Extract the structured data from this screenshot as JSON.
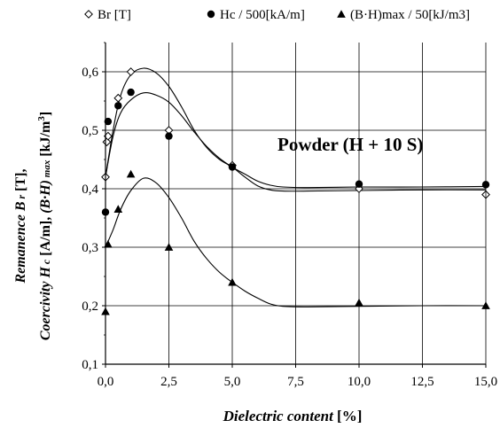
{
  "chart_data": {
    "type": "scatter",
    "xlabel_parts": [
      "Dielectric content",
      "  [%]"
    ],
    "ylabel_line1": [
      "Remanence ",
      "B",
      " r",
      "  [T],"
    ],
    "ylabel_line2": [
      "Coercivity ",
      "H",
      " c",
      "  [A/m], ",
      "(B·H)",
      " max",
      "  [kJ/m",
      "3",
      "]"
    ],
    "annotation": "Powder  (H + 10 S)",
    "xlim": [
      0,
      15
    ],
    "ylim": [
      0.1,
      0.65
    ],
    "x_ticks": [
      0,
      2.5,
      5,
      7.5,
      10,
      12.5,
      15
    ],
    "x_tick_labels": [
      "0,0",
      "2,5",
      "5,0",
      "7,5",
      "10,0",
      "12,5",
      "15,0"
    ],
    "y_ticks": [
      0.1,
      0.2,
      0.3,
      0.4,
      0.5,
      0.6
    ],
    "y_tick_labels": [
      "0,1",
      "0,2",
      "0,3",
      "0,4",
      "0,5",
      "0,6"
    ],
    "grid": true,
    "legend_position": "top",
    "series": [
      {
        "name": "Br [T]",
        "marker": "diamond-open",
        "points": [
          [
            0,
            0.42
          ],
          [
            0.05,
            0.48
          ],
          [
            0.1,
            0.49
          ],
          [
            0.5,
            0.555
          ],
          [
            1.0,
            0.6
          ],
          [
            2.5,
            0.5
          ],
          [
            5.0,
            0.44
          ],
          [
            10.0,
            0.4
          ],
          [
            15.0,
            0.39
          ]
        ],
        "curve": [
          [
            0,
            0.42
          ],
          [
            0.3,
            0.5
          ],
          [
            0.6,
            0.56
          ],
          [
            1.0,
            0.595
          ],
          [
            1.5,
            0.606
          ],
          [
            2.0,
            0.598
          ],
          [
            2.5,
            0.575
          ],
          [
            3.0,
            0.54
          ],
          [
            3.5,
            0.5
          ],
          [
            4.0,
            0.47
          ],
          [
            4.5,
            0.45
          ],
          [
            5.0,
            0.437
          ],
          [
            5.5,
            0.42
          ],
          [
            6.0,
            0.405
          ],
          [
            6.5,
            0.398
          ],
          [
            7.0,
            0.396
          ],
          [
            8.0,
            0.396
          ],
          [
            10.0,
            0.397
          ],
          [
            12.5,
            0.398
          ],
          [
            15.0,
            0.398
          ]
        ]
      },
      {
        "name": "Hc / 500[kA/m]",
        "marker": "circle-filled",
        "points": [
          [
            0,
            0.36
          ],
          [
            0.1,
            0.515
          ],
          [
            0.5,
            0.542
          ],
          [
            1.0,
            0.565
          ],
          [
            2.5,
            0.49
          ],
          [
            5.0,
            0.437
          ],
          [
            10.0,
            0.408
          ],
          [
            15.0,
            0.407
          ]
        ],
        "curve": [
          [
            0,
            0.42
          ],
          [
            0.3,
            0.49
          ],
          [
            0.6,
            0.53
          ],
          [
            1.0,
            0.552
          ],
          [
            1.5,
            0.564
          ],
          [
            2.0,
            0.56
          ],
          [
            2.5,
            0.548
          ],
          [
            3.0,
            0.525
          ],
          [
            3.5,
            0.497
          ],
          [
            4.0,
            0.472
          ],
          [
            4.5,
            0.452
          ],
          [
            5.0,
            0.437
          ],
          [
            5.5,
            0.425
          ],
          [
            6.0,
            0.413
          ],
          [
            6.5,
            0.406
          ],
          [
            7.0,
            0.403
          ],
          [
            8.0,
            0.402
          ],
          [
            10.0,
            0.403
          ],
          [
            12.5,
            0.403
          ],
          [
            15.0,
            0.404
          ]
        ]
      },
      {
        "name": "(B·H)max / 50[kJ/m3]",
        "marker": "triangle-filled",
        "points": [
          [
            0,
            0.19
          ],
          [
            0.1,
            0.305
          ],
          [
            0.5,
            0.365
          ],
          [
            1.0,
            0.425
          ],
          [
            2.5,
            0.3
          ],
          [
            5.0,
            0.24
          ],
          [
            10.0,
            0.205
          ],
          [
            15.0,
            0.2
          ]
        ],
        "curve": [
          [
            0,
            0.3
          ],
          [
            0.3,
            0.33
          ],
          [
            0.6,
            0.365
          ],
          [
            1.0,
            0.397
          ],
          [
            1.5,
            0.418
          ],
          [
            2.0,
            0.41
          ],
          [
            2.5,
            0.385
          ],
          [
            3.0,
            0.35
          ],
          [
            3.5,
            0.31
          ],
          [
            4.0,
            0.28
          ],
          [
            4.5,
            0.257
          ],
          [
            5.0,
            0.24
          ],
          [
            5.5,
            0.225
          ],
          [
            6.0,
            0.213
          ],
          [
            6.5,
            0.203
          ],
          [
            7.0,
            0.199
          ],
          [
            8.0,
            0.198
          ],
          [
            10.0,
            0.199
          ],
          [
            12.5,
            0.2
          ],
          [
            15.0,
            0.2
          ]
        ]
      }
    ]
  }
}
